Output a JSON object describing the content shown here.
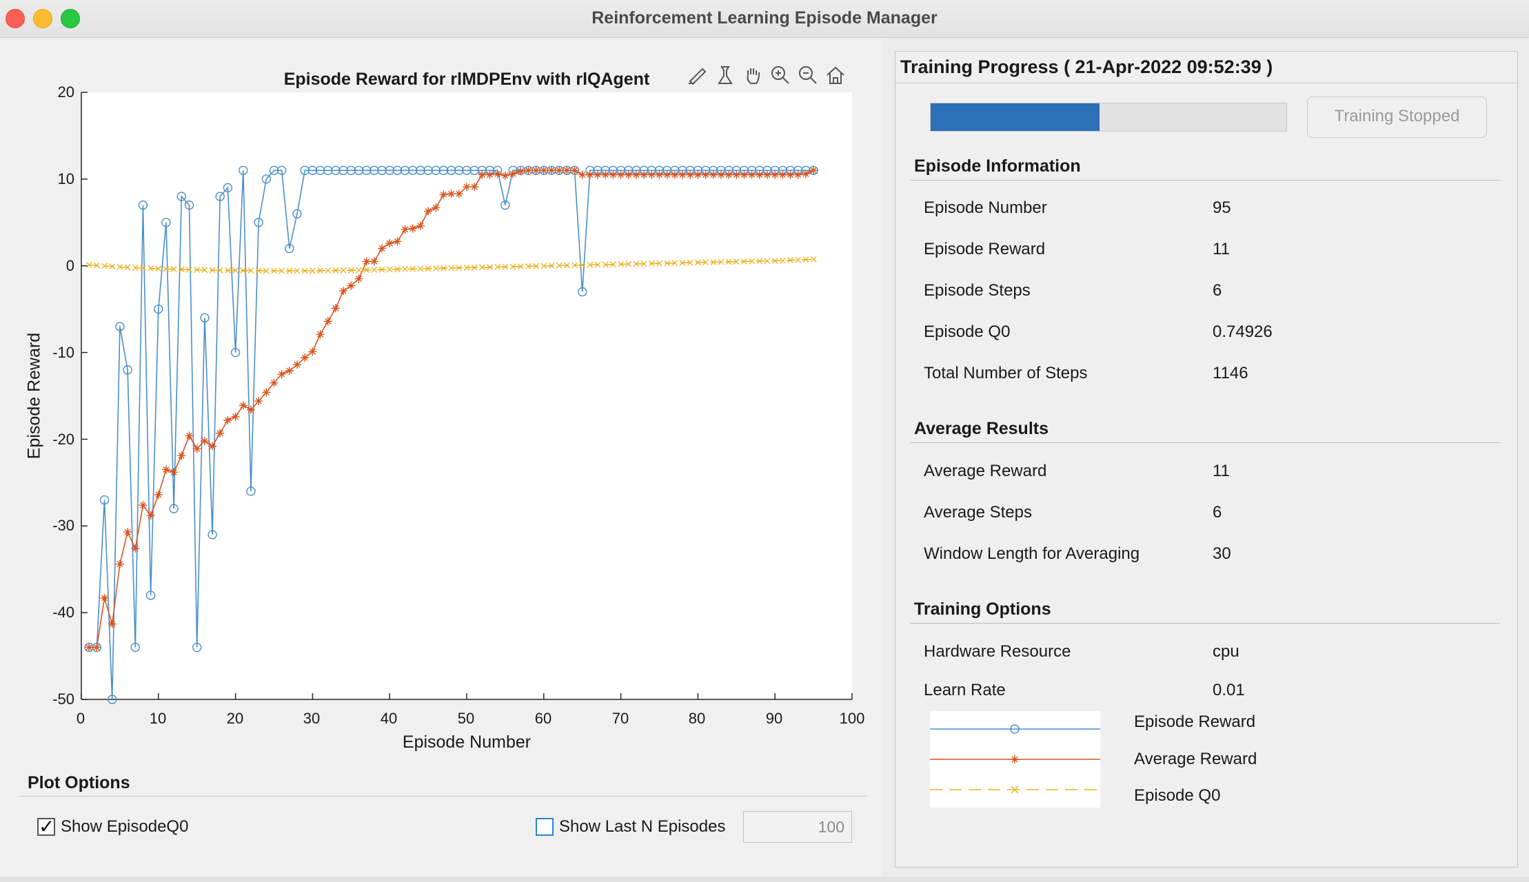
{
  "window": {
    "title": "Reinforcement Learning Episode Manager"
  },
  "plot": {
    "title": "Episode Reward for rlMDPEnv with rlQAgent",
    "toolbar_icons": [
      "brush-icon",
      "data-tips-icon",
      "pan-icon",
      "zoom-in-icon",
      "zoom-out-icon",
      "home-icon"
    ]
  },
  "chart_data": {
    "type": "line",
    "title": "Episode Reward for rlMDPEnv with rlQAgent",
    "xlabel": "Episode Number",
    "ylabel": "Episode Reward",
    "xlim": [
      0,
      100
    ],
    "ylim": [
      -50,
      20
    ],
    "xticks": [
      0,
      10,
      20,
      30,
      40,
      50,
      60,
      70,
      80,
      90,
      100
    ],
    "yticks": [
      20,
      10,
      0,
      -10,
      -20,
      -30,
      -40,
      -50
    ],
    "xtick_labels": [
      "0",
      "10",
      "20",
      "30",
      "40",
      "50",
      "60",
      "70",
      "80",
      "90",
      "100"
    ],
    "ytick_labels": [
      "20",
      "10",
      "0",
      "-10",
      "-20",
      "-30",
      "-40",
      "-50"
    ],
    "grid": false,
    "series": [
      {
        "name": "Episode Reward",
        "color": "#4a8fcb",
        "marker": "circle",
        "x": [
          1,
          2,
          3,
          4,
          5,
          6,
          7,
          8,
          9,
          10,
          11,
          12,
          13,
          14,
          15,
          16,
          17,
          18,
          19,
          20,
          21,
          22,
          23,
          24,
          25,
          26,
          27,
          28,
          29,
          30,
          31,
          32,
          33,
          34,
          35,
          36,
          37,
          38,
          39,
          40,
          41,
          42,
          43,
          44,
          45,
          46,
          47,
          48,
          49,
          50,
          51,
          52,
          53,
          54,
          55,
          56,
          57,
          58,
          59,
          60,
          61,
          62,
          63,
          64,
          65,
          66,
          67,
          68,
          69,
          70,
          71,
          72,
          73,
          74,
          75,
          76,
          77,
          78,
          79,
          80,
          81,
          82,
          83,
          84,
          85,
          86,
          87,
          88,
          89,
          90,
          91,
          92,
          93,
          94,
          95
        ],
        "y": [
          -44,
          -44,
          -27,
          -50,
          -7,
          -12,
          -44,
          7,
          -38,
          -5,
          5,
          -28,
          8,
          7,
          -44,
          -6,
          -31,
          8,
          9,
          -10,
          11,
          -26,
          5,
          10,
          11,
          11,
          2,
          6,
          11,
          11,
          11,
          11,
          11,
          11,
          11,
          11,
          11,
          11,
          11,
          11,
          11,
          11,
          11,
          11,
          11,
          11,
          11,
          11,
          11,
          11,
          11,
          11,
          11,
          11,
          7,
          11,
          11,
          11,
          11,
          11,
          11,
          11,
          11,
          11,
          -3,
          11,
          11,
          11,
          11,
          11,
          11,
          11,
          11,
          11,
          11,
          11,
          11,
          11,
          11,
          11,
          11,
          11,
          11,
          11,
          11,
          11,
          11,
          11,
          11,
          11,
          11,
          11,
          11,
          11,
          11
        ]
      },
      {
        "name": "Average Reward",
        "color": "#d9541e",
        "marker": "asterisk",
        "x": [
          1,
          2,
          3,
          4,
          5,
          6,
          7,
          8,
          9,
          10,
          11,
          12,
          13,
          14,
          15,
          16,
          17,
          18,
          19,
          20,
          21,
          22,
          23,
          24,
          25,
          26,
          27,
          28,
          29,
          30,
          31,
          32,
          33,
          34,
          35,
          36,
          37,
          38,
          39,
          40,
          41,
          42,
          43,
          44,
          45,
          46,
          47,
          48,
          49,
          50,
          51,
          52,
          53,
          54,
          55,
          56,
          57,
          58,
          59,
          60,
          61,
          62,
          63,
          64,
          65,
          66,
          67,
          68,
          69,
          70,
          71,
          72,
          73,
          74,
          75,
          76,
          77,
          78,
          79,
          80,
          81,
          82,
          83,
          84,
          85,
          86,
          87,
          88,
          89,
          90,
          91,
          92,
          93,
          94,
          95
        ],
        "y": [
          -44,
          -44,
          -38.3,
          -41.3,
          -34.4,
          -30.7,
          -32.6,
          -27.6,
          -28.8,
          -26.4,
          -23.5,
          -23.8,
          -21.9,
          -19.6,
          -21.1,
          -20.2,
          -20.8,
          -19.3,
          -17.8,
          -17.4,
          -16.1,
          -16.6,
          -15.6,
          -14.6,
          -13.5,
          -12.5,
          -12.1,
          -11.4,
          -10.6,
          -9.9,
          -7.9,
          -6.4,
          -4.9,
          -2.9,
          -2.3,
          -1.5,
          0.5,
          0.5,
          2.0,
          2.6,
          2.8,
          4.2,
          4.3,
          4.6,
          6.3,
          6.7,
          8.2,
          8.3,
          8.3,
          9.1,
          9.1,
          10.5,
          10.5,
          10.6,
          10.4,
          10.6,
          10.9,
          11,
          11,
          11,
          11,
          11,
          11,
          11,
          10.5,
          10.5,
          10.5,
          10.5,
          10.5,
          10.5,
          10.5,
          10.5,
          10.5,
          10.5,
          10.5,
          10.5,
          10.5,
          10.5,
          10.5,
          10.5,
          10.5,
          10.5,
          10.5,
          10.5,
          10.5,
          10.5,
          10.5,
          10.5,
          10.5,
          10.5,
          10.5,
          10.5,
          10.5,
          10.6,
          11
        ]
      },
      {
        "name": "Episode Q0",
        "color": "#edb120",
        "marker": "x",
        "x": [
          1,
          2,
          3,
          4,
          5,
          6,
          7,
          8,
          9,
          10,
          11,
          12,
          13,
          14,
          15,
          16,
          17,
          18,
          19,
          20,
          21,
          22,
          23,
          24,
          25,
          26,
          27,
          28,
          29,
          30,
          31,
          32,
          33,
          34,
          35,
          36,
          37,
          38,
          39,
          40,
          41,
          42,
          43,
          44,
          45,
          46,
          47,
          48,
          49,
          50,
          51,
          52,
          53,
          54,
          55,
          56,
          57,
          58,
          59,
          60,
          61,
          62,
          63,
          64,
          65,
          66,
          67,
          68,
          69,
          70,
          71,
          72,
          73,
          74,
          75,
          76,
          77,
          78,
          79,
          80,
          81,
          82,
          83,
          84,
          85,
          86,
          87,
          88,
          89,
          90,
          91,
          92,
          93,
          94,
          95
        ],
        "y": [
          0.1,
          0.04,
          -0.02,
          -0.08,
          -0.13,
          -0.18,
          -0.22,
          -0.26,
          -0.3,
          -0.33,
          -0.36,
          -0.39,
          -0.42,
          -0.44,
          -0.46,
          -0.48,
          -0.5,
          -0.52,
          -0.53,
          -0.54,
          -0.55,
          -0.56,
          -0.57,
          -0.58,
          -0.58,
          -0.58,
          -0.58,
          -0.58,
          -0.58,
          -0.57,
          -0.56,
          -0.55,
          -0.54,
          -0.53,
          -0.52,
          -0.5,
          -0.48,
          -0.46,
          -0.44,
          -0.42,
          -0.4,
          -0.38,
          -0.36,
          -0.34,
          -0.32,
          -0.3,
          -0.28,
          -0.26,
          -0.24,
          -0.22,
          -0.2,
          -0.18,
          -0.16,
          -0.14,
          -0.12,
          -0.1,
          -0.08,
          -0.06,
          -0.04,
          -0.02,
          0,
          0.02,
          0.04,
          0.06,
          0.08,
          0.1,
          0.12,
          0.14,
          0.16,
          0.18,
          0.2,
          0.22,
          0.24,
          0.26,
          0.28,
          0.3,
          0.32,
          0.34,
          0.36,
          0.38,
          0.4,
          0.42,
          0.44,
          0.46,
          0.48,
          0.5,
          0.52,
          0.54,
          0.56,
          0.58,
          0.6,
          0.64,
          0.68,
          0.72,
          0.75
        ]
      }
    ]
  },
  "plot_options": {
    "title": "Plot Options",
    "show_q0_label": "Show EpisodeQ0",
    "show_q0_checked": true,
    "show_last_n_label": "Show Last N Episodes",
    "show_last_n_checked": false,
    "last_n_value": "100"
  },
  "training_progress": {
    "title": "Training Progress ( 21-Apr-2022 09:52:39 )",
    "progress_fraction": 0.475,
    "stop_button_label": "Training Stopped",
    "colors": {
      "progress_fill": "#2b6fb6"
    }
  },
  "episode_information": {
    "title": "Episode Information",
    "rows": [
      {
        "label": "Episode Number",
        "value": "95"
      },
      {
        "label": "Episode Reward",
        "value": "11"
      },
      {
        "label": "Episode Steps",
        "value": "6"
      },
      {
        "label": "Episode Q0",
        "value": "0.74926"
      },
      {
        "label": "Total Number of Steps",
        "value": "1146"
      }
    ]
  },
  "average_results": {
    "title": "Average Results",
    "rows": [
      {
        "label": "Average Reward",
        "value": "11"
      },
      {
        "label": "Average Steps",
        "value": "6"
      },
      {
        "label": "Window Length for Averaging",
        "value": "30"
      }
    ]
  },
  "training_options": {
    "title": "Training Options",
    "rows": [
      {
        "label": "Hardware Resource",
        "value": "cpu"
      }
    ],
    "clipped_row": {
      "label": "Learn Rate",
      "value": "0.01"
    }
  },
  "legend": {
    "items": [
      {
        "label": "Episode Reward",
        "color": "#4a8fcb",
        "marker": "circle-marker-icon"
      },
      {
        "label": "Average Reward",
        "color": "#d9541e",
        "marker": "asterisk-marker-icon"
      },
      {
        "label": "Episode Q0",
        "color": "#edb120",
        "marker": "x-marker-icon"
      }
    ]
  }
}
